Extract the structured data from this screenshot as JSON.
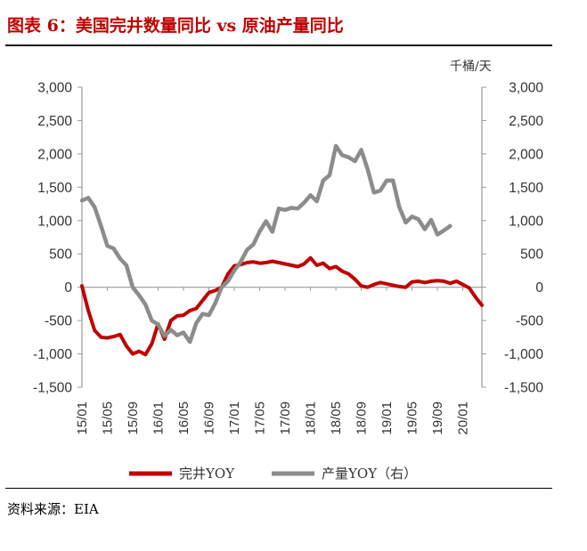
{
  "title": "图表 6：美国完井数量同比 vs 原油产量同比",
  "source": "资料来源：EIA",
  "colors": {
    "title": "#c00000",
    "well": "#c00000",
    "prod": "#8c8c8c"
  },
  "chart_data": {
    "type": "line",
    "unit_right": "千桶/天",
    "x_ticks": [
      "15/01",
      "15/05",
      "15/09",
      "16/01",
      "16/05",
      "16/09",
      "17/01",
      "17/05",
      "17/09",
      "18/01",
      "18/05",
      "18/09",
      "19/01",
      "19/05",
      "19/09",
      "20/01"
    ],
    "y_left": {
      "ylim": [
        -1500,
        3000
      ],
      "ticks": [
        "3,000",
        "2,500",
        "2,000",
        "1,500",
        "1,000",
        "500",
        "0",
        "-500",
        "-1,000",
        "-1,500"
      ]
    },
    "y_right": {
      "ylim": [
        -1500,
        3000
      ],
      "ticks": [
        "3,000",
        "2,500",
        "2,000",
        "1,500",
        "1,000",
        "500",
        "0",
        "-500",
        "-1,000",
        "-1,500"
      ]
    },
    "legend": {
      "placement": "bottom"
    },
    "series": [
      {
        "name": "完井YOY",
        "axis": "left",
        "color": "#c00000",
        "x": [
          0,
          1,
          2,
          3,
          4,
          5,
          6,
          7,
          8,
          9,
          10,
          11,
          12,
          13,
          14,
          15,
          16,
          17,
          18,
          19,
          20,
          21,
          22,
          23,
          24,
          25,
          26,
          27,
          28,
          29,
          30,
          31,
          32,
          33,
          34,
          35,
          36,
          37,
          38,
          39,
          40,
          41,
          42,
          43,
          44,
          45,
          46,
          47,
          48,
          49,
          50,
          51,
          52,
          53,
          54,
          55,
          56,
          57,
          58,
          59,
          60,
          61,
          62,
          63
        ],
        "values": [
          20,
          -350,
          -650,
          -750,
          -760,
          -740,
          -710,
          -880,
          -1000,
          -960,
          -1010,
          -850,
          -550,
          -780,
          -500,
          -430,
          -420,
          -350,
          -320,
          -200,
          -80,
          -50,
          0,
          200,
          320,
          340,
          370,
          380,
          360,
          370,
          390,
          370,
          350,
          330,
          310,
          350,
          440,
          330,
          360,
          280,
          310,
          240,
          200,
          120,
          20,
          0,
          40,
          70,
          50,
          30,
          10,
          0,
          80,
          90,
          70,
          90,
          100,
          90,
          60,
          90,
          40,
          -10,
          -150,
          -270
        ]
      },
      {
        "name": "产量YOY（右）",
        "axis": "right",
        "color": "#8c8c8c",
        "x": [
          0,
          1,
          2,
          3,
          4,
          5,
          6,
          7,
          8,
          9,
          10,
          11,
          12,
          13,
          14,
          15,
          16,
          17,
          18,
          19,
          20,
          21,
          22,
          23,
          24,
          25,
          26,
          27,
          28,
          29,
          30,
          31,
          32,
          33,
          34,
          35,
          36,
          37,
          38,
          39,
          40,
          41,
          42,
          43,
          44,
          45,
          46,
          47,
          48,
          49,
          50,
          51,
          52,
          53,
          54,
          55,
          56,
          57,
          58,
          59,
          60,
          61,
          62,
          63
        ],
        "values": [
          1300,
          1340,
          1200,
          920,
          620,
          580,
          430,
          330,
          0,
          -120,
          -260,
          -500,
          -560,
          -730,
          -640,
          -720,
          -680,
          -820,
          -540,
          -400,
          -420,
          -240,
          0,
          90,
          250,
          380,
          560,
          640,
          840,
          990,
          830,
          1180,
          1160,
          1190,
          1180,
          1270,
          1380,
          1290,
          1600,
          1680,
          2120,
          1980,
          1950,
          1890,
          2060,
          1770,
          1420,
          1450,
          1600,
          1600,
          1200,
          970,
          1060,
          1020,
          870,
          1010,
          790,
          850,
          920,
          null,
          null,
          null,
          null,
          null
        ]
      }
    ]
  }
}
